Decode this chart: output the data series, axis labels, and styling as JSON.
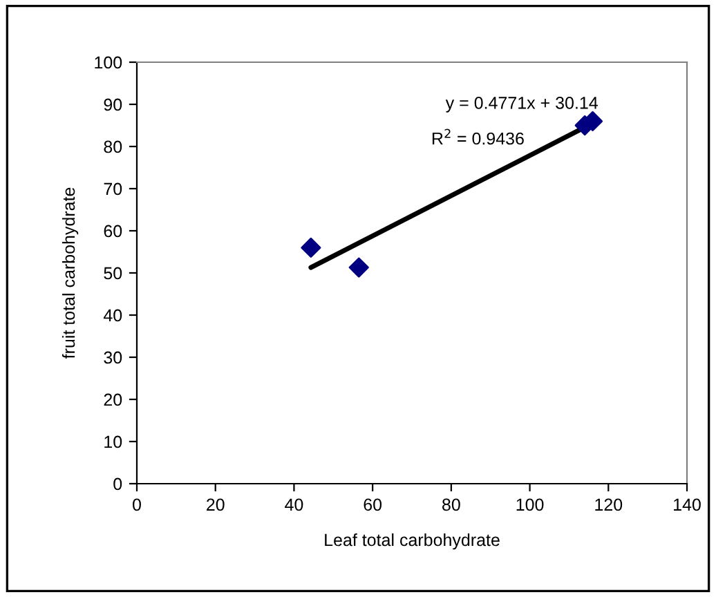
{
  "chart_data": {
    "type": "scatter",
    "xlabel": "Leaf total carbohydrate",
    "ylabel": "fruit total carbohydrate",
    "series": [
      {
        "color": "#000080",
        "x": [
          44.3,
          56.5,
          114,
          116
        ],
        "values": [
          56,
          51.3,
          85,
          86
        ],
        "marker": "diamond"
      },
      {
        "type": "line",
        "color": "#000000",
        "x": [
          44.3,
          116
        ],
        "values": [
          51.3,
          85.5
        ],
        "marker": "none"
      }
    ],
    "annotations": [
      "y = 0.4771x + 30.14",
      "R$^{2}$ = 0.9436"
    ],
    "xlim": [
      0,
      140
    ],
    "xticks": [
      0,
      20,
      40,
      60,
      80,
      100,
      120,
      140
    ],
    "ylim": [
      0,
      100
    ],
    "yticks": [
      0,
      10,
      20,
      30,
      40,
      50,
      60,
      70,
      80,
      90,
      100
    ],
    "grid": false,
    "legend": false
  }
}
